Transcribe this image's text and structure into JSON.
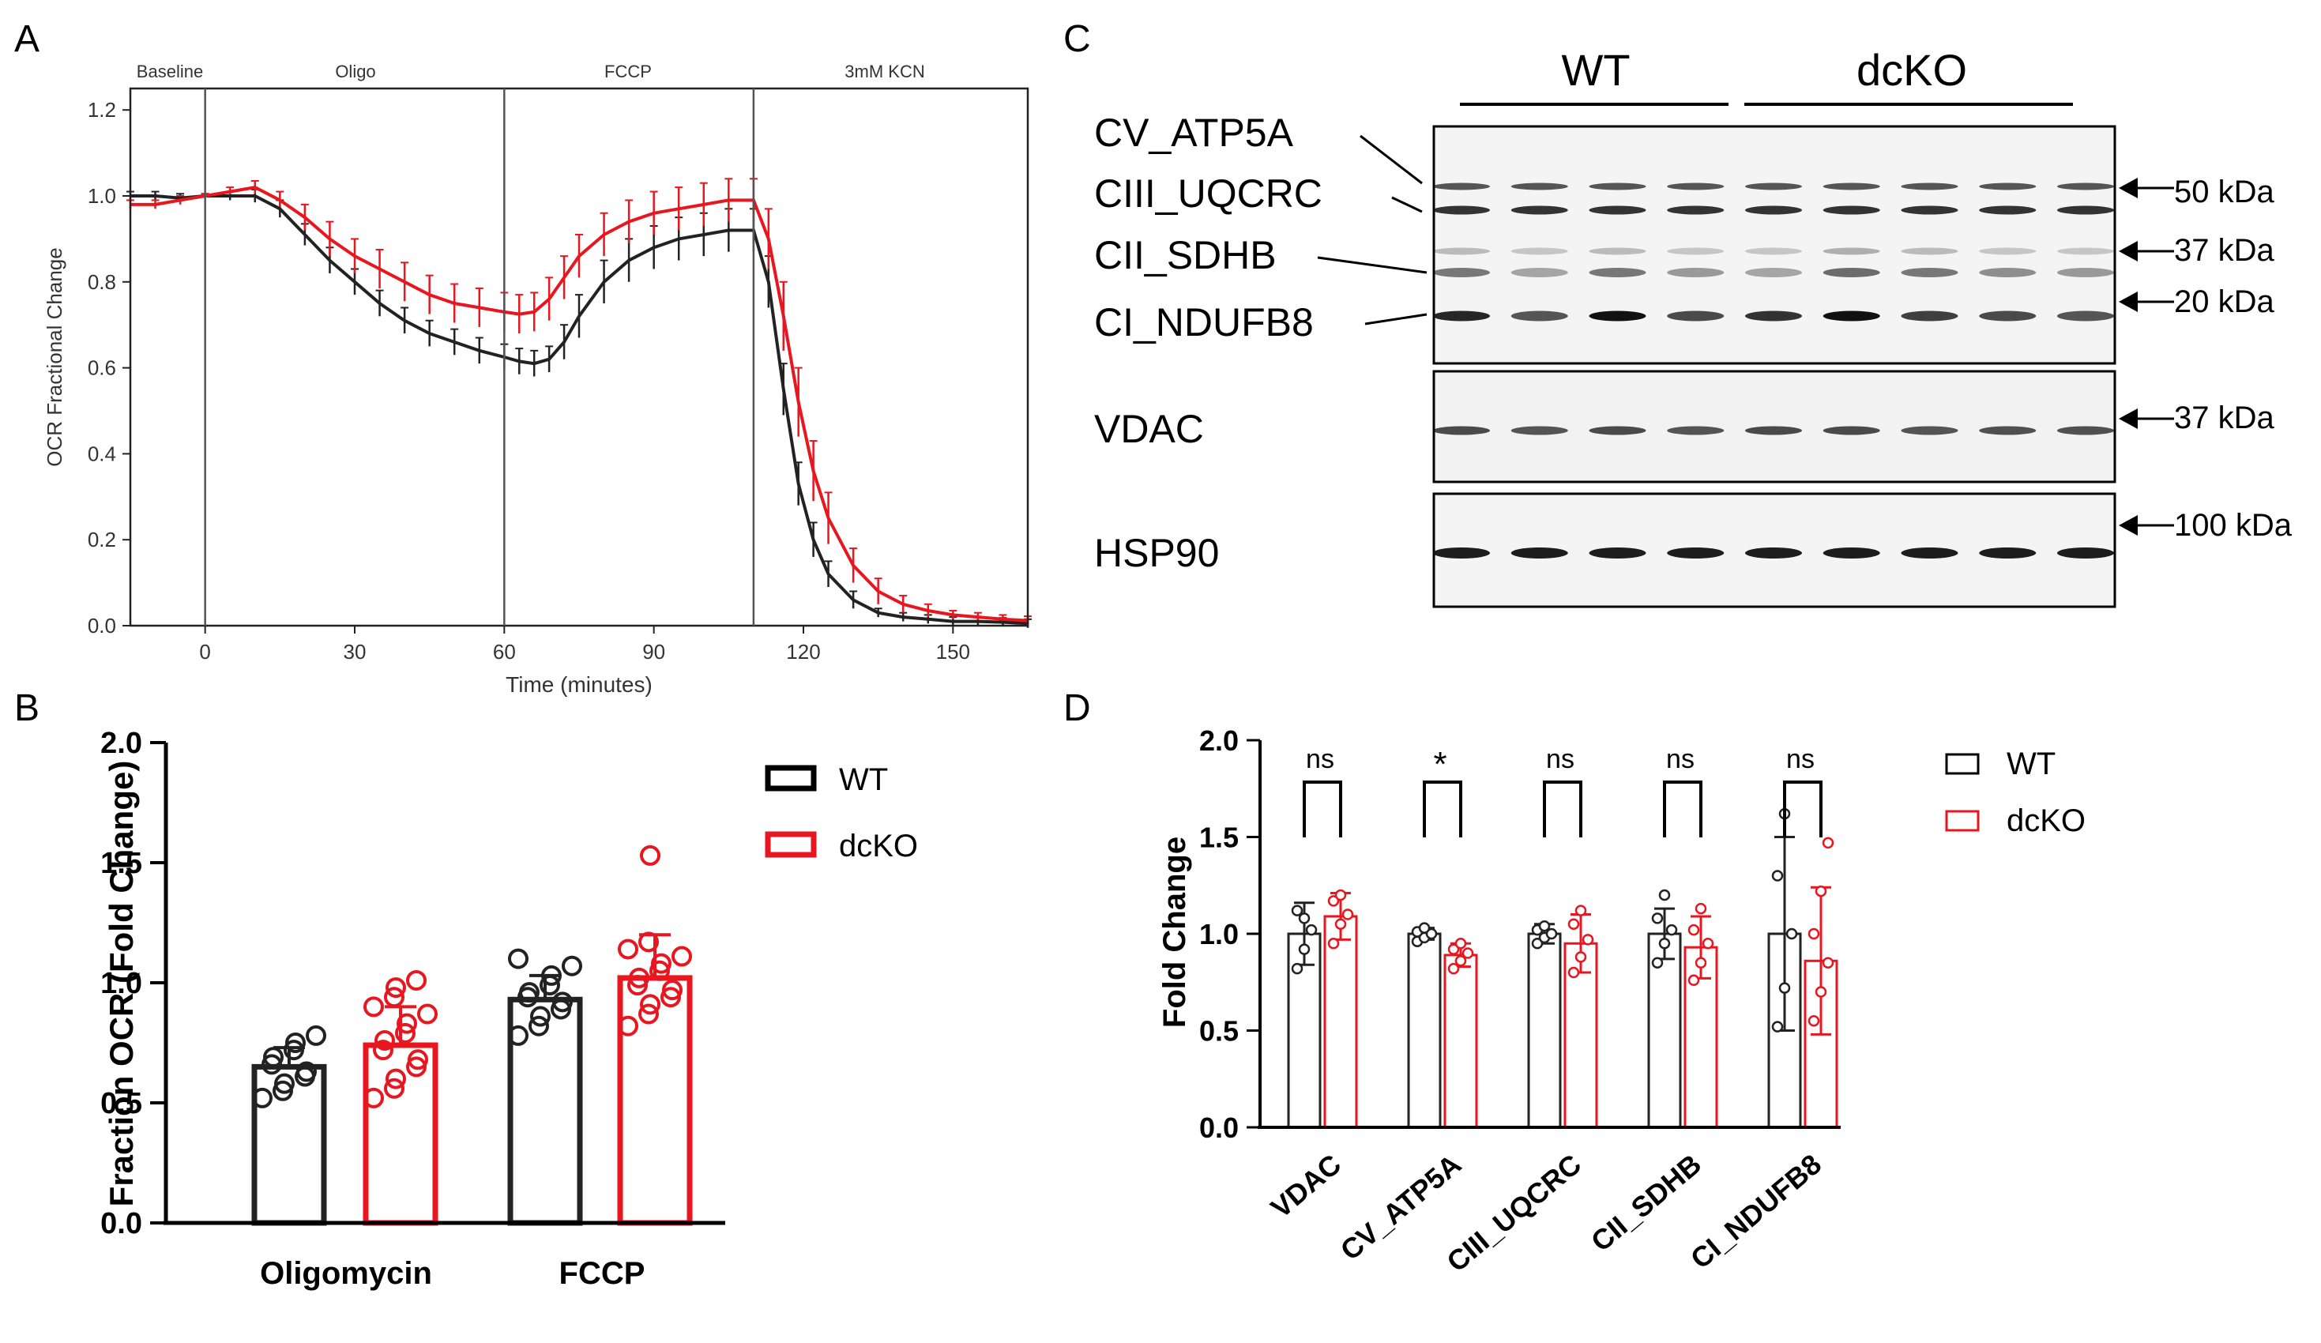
{
  "panels": {
    "a": "A",
    "b": "B",
    "c": "C",
    "d": "D"
  },
  "colors": {
    "wt": "#222222",
    "dcko": "#e8161f",
    "dcko_fill": "#f0a0a0",
    "axis": "#000000"
  },
  "chart_data": [
    {
      "panel": "A",
      "type": "line",
      "xlabel": "Time (minutes)",
      "ylabel": "OCR Fractional Change",
      "xlim": [
        -15,
        165
      ],
      "ylim": [
        0.0,
        1.25
      ],
      "xticks": [
        0,
        30,
        60,
        90,
        120,
        150
      ],
      "yticks": [
        0.0,
        0.2,
        0.4,
        0.6,
        0.8,
        1.0,
        1.2
      ],
      "phase_lines": [
        0,
        60,
        110
      ],
      "phase_labels": [
        "Baseline",
        "Oligo",
        "FCCP",
        "3mM KCN"
      ],
      "series": [
        {
          "name": "WT",
          "x": [
            -15,
            -10,
            -5,
            0,
            5,
            10,
            15,
            20,
            25,
            30,
            35,
            40,
            45,
            50,
            55,
            60,
            63,
            66,
            69,
            72,
            75,
            80,
            85,
            90,
            95,
            100,
            105,
            110,
            113,
            116,
            119,
            122,
            125,
            130,
            135,
            140,
            145,
            150,
            155,
            160,
            165
          ],
          "y": [
            1.0,
            1.0,
            0.995,
            1.0,
            1.0,
            1.0,
            0.97,
            0.91,
            0.85,
            0.8,
            0.75,
            0.71,
            0.68,
            0.66,
            0.64,
            0.625,
            0.615,
            0.61,
            0.62,
            0.66,
            0.72,
            0.8,
            0.85,
            0.88,
            0.9,
            0.91,
            0.92,
            0.92,
            0.8,
            0.55,
            0.33,
            0.2,
            0.12,
            0.06,
            0.03,
            0.02,
            0.015,
            0.01,
            0.01,
            0.008,
            0.005
          ],
          "err": [
            0.01,
            0.01,
            0.01,
            0.005,
            0.01,
            0.015,
            0.02,
            0.025,
            0.03,
            0.03,
            0.03,
            0.03,
            0.03,
            0.03,
            0.03,
            0.03,
            0.03,
            0.03,
            0.03,
            0.04,
            0.05,
            0.05,
            0.05,
            0.05,
            0.05,
            0.05,
            0.05,
            0.05,
            0.06,
            0.06,
            0.05,
            0.04,
            0.03,
            0.02,
            0.01,
            0.01,
            0.01,
            0.01,
            0.01,
            0.01,
            0.01
          ]
        },
        {
          "name": "dcKO",
          "x": [
            -15,
            -10,
            -5,
            0,
            5,
            10,
            15,
            20,
            25,
            30,
            35,
            40,
            45,
            50,
            55,
            60,
            63,
            66,
            69,
            72,
            75,
            80,
            85,
            90,
            95,
            100,
            105,
            110,
            113,
            116,
            119,
            122,
            125,
            130,
            135,
            140,
            145,
            150,
            155,
            160,
            165
          ],
          "y": [
            0.98,
            0.98,
            0.99,
            1.0,
            1.01,
            1.02,
            0.99,
            0.95,
            0.9,
            0.86,
            0.83,
            0.8,
            0.77,
            0.75,
            0.74,
            0.73,
            0.725,
            0.73,
            0.76,
            0.81,
            0.86,
            0.91,
            0.94,
            0.96,
            0.97,
            0.98,
            0.99,
            0.99,
            0.9,
            0.72,
            0.52,
            0.36,
            0.25,
            0.14,
            0.08,
            0.05,
            0.035,
            0.025,
            0.02,
            0.015,
            0.012
          ],
          "err": [
            0.01,
            0.01,
            0.01,
            0.005,
            0.01,
            0.015,
            0.02,
            0.03,
            0.04,
            0.04,
            0.045,
            0.045,
            0.045,
            0.045,
            0.045,
            0.045,
            0.045,
            0.045,
            0.05,
            0.05,
            0.05,
            0.05,
            0.05,
            0.05,
            0.05,
            0.05,
            0.05,
            0.05,
            0.07,
            0.08,
            0.08,
            0.07,
            0.06,
            0.04,
            0.03,
            0.02,
            0.015,
            0.01,
            0.01,
            0.01,
            0.01
          ]
        }
      ]
    },
    {
      "panel": "B",
      "type": "bar",
      "ylabel": "Fraction OCR (Fold Change)",
      "ylim": [
        0.0,
        2.0
      ],
      "yticks": [
        0.0,
        0.5,
        1.0,
        1.5,
        2.0
      ],
      "categories": [
        "Oligomycin",
        "FCCP"
      ],
      "legend": [
        "WT",
        "dcKO"
      ],
      "series": [
        {
          "name": "WT",
          "values": [
            0.65,
            0.93
          ],
          "err": [
            0.08,
            0.1
          ],
          "points": [
            [
              0.52,
              0.55,
              0.58,
              0.61,
              0.63,
              0.66,
              0.69,
              0.72,
              0.75,
              0.78
            ],
            [
              0.78,
              0.82,
              0.86,
              0.89,
              0.92,
              0.94,
              0.96,
              0.99,
              1.03,
              1.07,
              1.1
            ]
          ]
        },
        {
          "name": "dcKO",
          "values": [
            0.74,
            1.02
          ],
          "err": [
            0.16,
            0.18
          ],
          "points": [
            [
              0.52,
              0.56,
              0.6,
              0.65,
              0.68,
              0.72,
              0.76,
              0.79,
              0.83,
              0.87,
              0.9,
              0.94,
              0.98,
              1.01
            ],
            [
              0.82,
              0.87,
              0.91,
              0.94,
              0.97,
              0.99,
              1.02,
              1.05,
              1.08,
              1.11,
              1.14,
              1.17,
              1.53
            ]
          ]
        }
      ]
    },
    {
      "panel": "D",
      "type": "bar",
      "ylabel": "Fold Change",
      "ylim": [
        0.0,
        2.0
      ],
      "yticks": [
        0.0,
        0.5,
        1.0,
        1.5,
        2.0
      ],
      "categories": [
        "VDAC",
        "CV_ATP5A",
        "CIII_UQCRC",
        "CII_SDHB",
        "CI_NDUFB8"
      ],
      "significance": [
        "ns",
        "*",
        "ns",
        "ns",
        "ns"
      ],
      "legend": [
        "WT",
        "dcKO"
      ],
      "series": [
        {
          "name": "WT",
          "values": [
            1.0,
            1.0,
            1.0,
            1.0,
            1.0
          ],
          "err": [
            0.16,
            0.03,
            0.05,
            0.13,
            0.5
          ],
          "points": [
            [
              0.82,
              0.92,
              1.02,
              1.12,
              1.08
            ],
            [
              0.96,
              0.98,
              1.0,
              1.01,
              1.03
            ],
            [
              0.95,
              0.98,
              1.0,
              1.02,
              1.04
            ],
            [
              0.85,
              0.95,
              1.02,
              1.08,
              1.2
            ],
            [
              0.52,
              0.72,
              1.0,
              1.3,
              1.62
            ]
          ]
        },
        {
          "name": "dcKO",
          "values": [
            1.09,
            0.89,
            0.95,
            0.93,
            0.86
          ],
          "err": [
            0.12,
            0.06,
            0.15,
            0.16,
            0.38
          ],
          "points": [
            [
              0.95,
              1.05,
              1.1,
              1.17,
              1.2
            ],
            [
              0.82,
              0.86,
              0.9,
              0.92,
              0.95
            ],
            [
              0.8,
              0.88,
              0.97,
              1.05,
              1.12
            ],
            [
              0.76,
              0.85,
              0.95,
              1.02,
              1.13
            ],
            [
              0.55,
              0.7,
              0.85,
              1.0,
              1.22,
              1.47
            ]
          ]
        }
      ]
    }
  ],
  "blot": {
    "group_labels": [
      "WT",
      "dcKO"
    ],
    "complex_labels": [
      "CV_ATP5A",
      "CIII_UQCRC",
      "CII_SDHB",
      "CI_NDUFB8"
    ],
    "panel2_label": "VDAC",
    "panel3_label": "HSP90",
    "markers_panel1": [
      "50 kDa",
      "37 kDa",
      "20 kDa"
    ],
    "marker_panel2": "37 kDa",
    "marker_panel3": "100 kDa",
    "lanes": 9,
    "wt_lanes": 4,
    "dcko_lanes": 5,
    "band_intensity": {
      "atp5a": [
        0.7,
        0.7,
        0.7,
        0.7,
        0.7,
        0.7,
        0.7,
        0.7,
        0.7
      ],
      "uqcrc": [
        0.85,
        0.85,
        0.85,
        0.85,
        0.85,
        0.85,
        0.85,
        0.85,
        0.85
      ],
      "sdhb_upper": [
        0.25,
        0.2,
        0.25,
        0.2,
        0.2,
        0.3,
        0.25,
        0.2,
        0.2
      ],
      "sdhb_lower": [
        0.55,
        0.35,
        0.55,
        0.4,
        0.35,
        0.6,
        0.55,
        0.45,
        0.4
      ],
      "ndufb8": [
        0.9,
        0.7,
        1.0,
        0.75,
        0.85,
        1.0,
        0.8,
        0.75,
        0.7
      ],
      "vdac": [
        0.75,
        0.7,
        0.75,
        0.7,
        0.75,
        0.75,
        0.7,
        0.72,
        0.72
      ],
      "hsp90": [
        0.95,
        0.95,
        0.95,
        0.95,
        0.95,
        0.95,
        0.95,
        0.95,
        0.95
      ]
    }
  }
}
